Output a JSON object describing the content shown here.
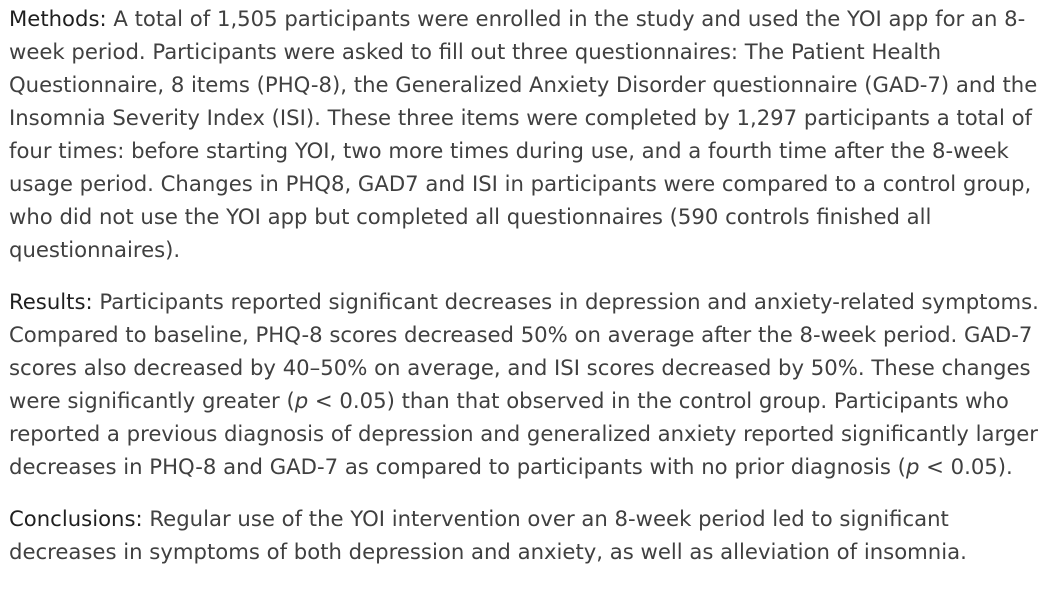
{
  "abstract": {
    "methods": {
      "label": "Methods",
      "text": "A total of 1,505 participants were enrolled in the study and used the YOI app for an 8-week period. Participants were asked to fill out three questionnaires: The Patient Health Questionnaire, 8 items (PHQ-8), the Generalized Anxiety Disorder questionnaire (GAD-7) and the Insomnia Severity Index (ISI). These three items were completed by 1,297 participants a total of four times: before starting YOI, two more times during use, and a fourth time after the 8-week usage period. Changes in PHQ8, GAD7 and ISI in participants were compared to a control group, who did not use the YOI app but completed all questionnaires (590 controls finished all questionnaires)."
    },
    "results": {
      "label": "Results",
      "text_1": "Participants reported significant decreases in depression and anxiety-related symptoms. Compared to baseline, PHQ-8 scores decreased 50% on average after the 8-week period. GAD-7 scores also decreased by 40–50% on average, and ISI scores decreased by 50%. These changes were significantly greater (",
      "p1": "p",
      "text_2": " < 0.05) than that observed in the control group. Participants who reported a previous diagnosis of depression and generalized anxiety reported significantly larger decreases in PHQ-8 and GAD-7 as compared to participants with no prior diagnosis (",
      "p2": "p",
      "text_3": " < 0.05)."
    },
    "conclusions": {
      "label": "Conclusions",
      "text": "Regular use of the YOI intervention over an 8-week period led to significant decreases in symptoms of both depression and anxiety, as well as alleviation of insomnia."
    }
  }
}
